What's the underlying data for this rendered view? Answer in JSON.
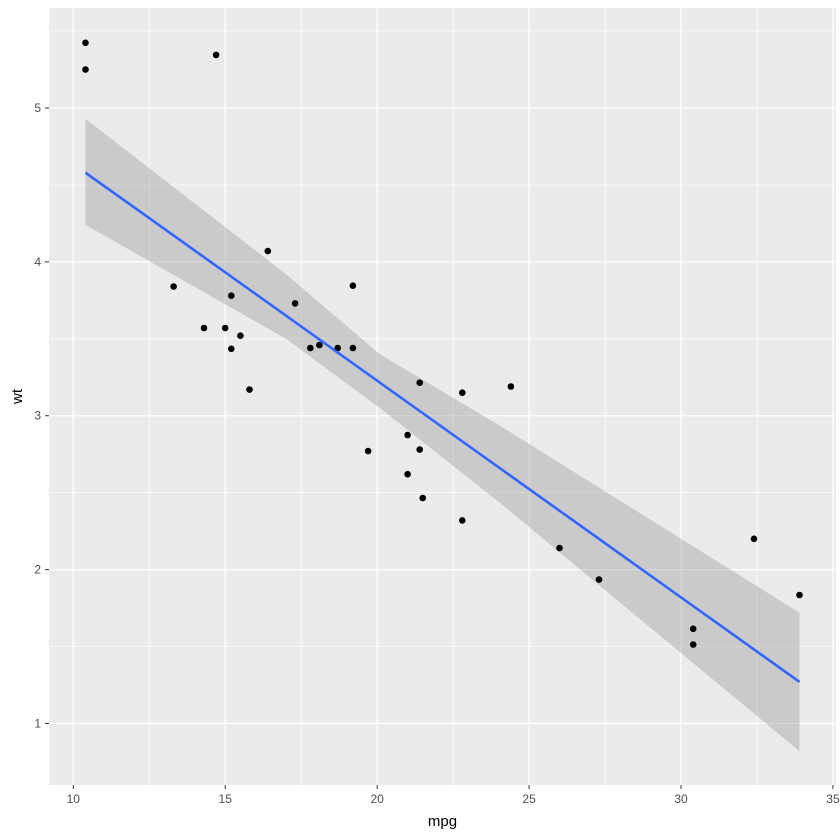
{
  "chart_data": {
    "type": "scatter",
    "xlabel": "mpg",
    "ylabel": "wt",
    "xlim": [
      9.2,
      35.1
    ],
    "ylim": [
      0.6,
      5.65
    ],
    "x_ticks": [
      10,
      15,
      20,
      25,
      30,
      35
    ],
    "x_minor_ticks": [
      12.5,
      17.5,
      22.5,
      27.5,
      32.5
    ],
    "y_ticks": [
      1,
      2,
      3,
      4,
      5
    ],
    "y_minor_ticks": [
      1.5,
      2.5,
      3.5,
      4.5,
      5.5
    ],
    "grid": true,
    "colors": {
      "panel_background": "#ebebeb",
      "grid": "#ffffff",
      "points": "#000000",
      "fit_line": "#3366ff",
      "confidence_band": "#999999"
    },
    "series": [
      {
        "kind": "points",
        "x": [
          21.0,
          21.0,
          22.8,
          21.4,
          18.7,
          18.1,
          14.3,
          24.4,
          22.8,
          19.2,
          17.8,
          16.4,
          17.3,
          15.2,
          10.4,
          10.4,
          14.7,
          32.4,
          30.4,
          33.9,
          21.5,
          15.5,
          15.2,
          13.3,
          19.2,
          27.3,
          26.0,
          30.4,
          15.8,
          19.7,
          15.0,
          21.4
        ],
        "y": [
          2.62,
          2.875,
          2.32,
          3.215,
          3.44,
          3.46,
          3.57,
          3.19,
          3.15,
          3.44,
          3.44,
          4.07,
          3.73,
          3.78,
          5.25,
          5.424,
          5.345,
          2.2,
          1.615,
          1.835,
          2.465,
          3.52,
          3.435,
          3.84,
          3.845,
          1.935,
          2.14,
          1.513,
          3.17,
          2.77,
          3.57,
          2.78
        ]
      },
      {
        "kind": "smooth",
        "method": "lm",
        "x": [
          10.4,
          33.9
        ],
        "y": [
          4.58,
          1.27
        ],
        "band": {
          "x": [
            10.4,
            17.0,
            20.09,
            24.0,
            33.9
          ],
          "lower": [
            4.24,
            3.5,
            3.05,
            2.44,
            0.82
          ],
          "upper": [
            4.93,
            3.92,
            3.4,
            2.94,
            1.72
          ]
        }
      }
    ]
  }
}
